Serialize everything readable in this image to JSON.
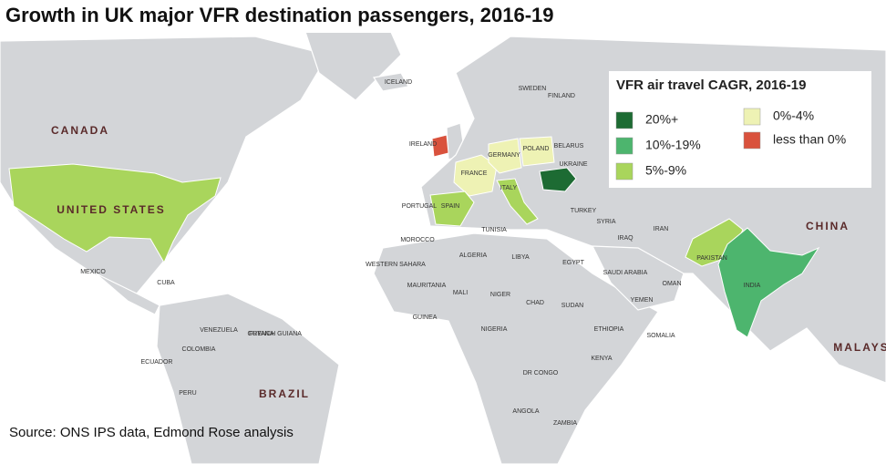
{
  "title": "Growth in UK major VFR destination passengers, 2016-19",
  "legend": {
    "title": "VFR air travel CAGR, 2016-19",
    "items": [
      {
        "label": "20%+",
        "color": "#1d6b33"
      },
      {
        "label": "10%-19%",
        "color": "#4db56e"
      },
      {
        "label": "5%-9%",
        "color": "#a9d55c"
      },
      {
        "label": "0%-4%",
        "color": "#eef2b4"
      },
      {
        "label": "less than 0%",
        "color": "#d9523d"
      }
    ]
  },
  "labels": [
    "CANADA",
    "UNITED STATES",
    "MEXICO",
    "CUBA",
    "VENEZUELA",
    "GUYANA",
    "FRENCH GUIANA",
    "COLOMBIA",
    "ECUADOR",
    "PERU",
    "BRAZIL",
    "ICELAND",
    "SWEDEN",
    "FINLAND",
    "IRELAND",
    "GERMANY",
    "POLAND",
    "BELARUS",
    "UKRAINE",
    "FRANCE",
    "ITALY",
    "SPAIN",
    "PORTUGAL",
    "TURKEY",
    "SYRIA",
    "IRAQ",
    "IRAN",
    "TUNISIA",
    "MOROCCO",
    "WESTERN SAHARA",
    "ALGERIA",
    "LIBYA",
    "EGYPT",
    "MAURITANIA",
    "MALI",
    "NIGER",
    "CHAD",
    "SUDAN",
    "NIGERIA",
    "GUINEA",
    "ETHIOPIA",
    "SOMALIA",
    "KENYA",
    "DR CONGO",
    "ANGOLA",
    "ZAMBIA",
    "SAUDI ARABIA",
    "YEMEN",
    "OMAN",
    "PAKISTAN",
    "INDIA",
    "CHINA",
    "MALAYS"
  ],
  "source": "Source: ONS IPS data, Edmond Rose analysis"
}
